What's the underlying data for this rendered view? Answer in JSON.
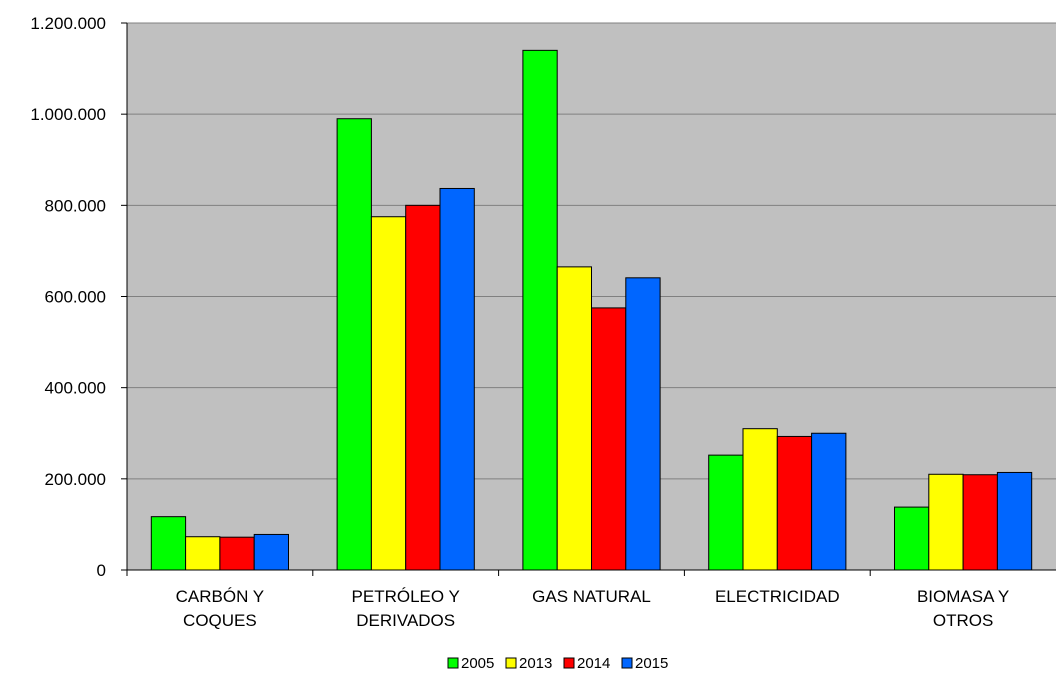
{
  "chart_data": {
    "type": "bar",
    "title": "",
    "xlabel": "",
    "ylabel": "",
    "ylim": [
      0,
      1200000
    ],
    "ytick_step": 200000,
    "yticks": [
      "0",
      "200.000",
      "400.000",
      "600.000",
      "800.000",
      "1.000.000",
      "1.200.000"
    ],
    "categories": [
      [
        "CARBÓN Y",
        "COQUES"
      ],
      [
        "PETRÓLEO Y",
        "DERIVADOS"
      ],
      [
        "GAS NATURAL"
      ],
      [
        "ELECTRICIDAD"
      ],
      [
        "BIOMASA Y",
        "OTROS"
      ]
    ],
    "series": [
      {
        "name": "2005",
        "color": "#00ff00",
        "values": [
          117000,
          990000,
          1140000,
          252000,
          138000
        ]
      },
      {
        "name": "2013",
        "color": "#ffff00",
        "values": [
          73000,
          775000,
          665000,
          310000,
          210000
        ]
      },
      {
        "name": "2014",
        "color": "#ff0000",
        "values": [
          72000,
          800000,
          575000,
          293000,
          209000
        ]
      },
      {
        "name": "2015",
        "color": "#0066ff",
        "values": [
          78000,
          837000,
          641000,
          300000,
          214000
        ]
      }
    ],
    "grid": true,
    "plot_background": "#c0c0c0",
    "legend_position": "bottom"
  }
}
